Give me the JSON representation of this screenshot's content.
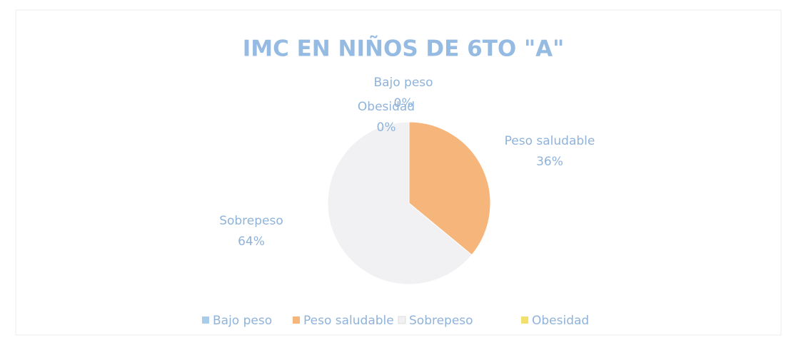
{
  "chart_data": {
    "type": "pie",
    "title": "IMC EN NIÑOS DE 6TO \"A\"",
    "categories": [
      "Bajo peso",
      "Peso saludable",
      "Sobrepeso",
      "Obesidad"
    ],
    "values": [
      0,
      36,
      64,
      0
    ],
    "value_labels": [
      "0%",
      "36%",
      "64%",
      "0%"
    ],
    "colors": [
      "#a9cde9",
      "#f6b57a",
      "#f1f1f3",
      "#f3df6a"
    ],
    "legend": "bottom"
  }
}
